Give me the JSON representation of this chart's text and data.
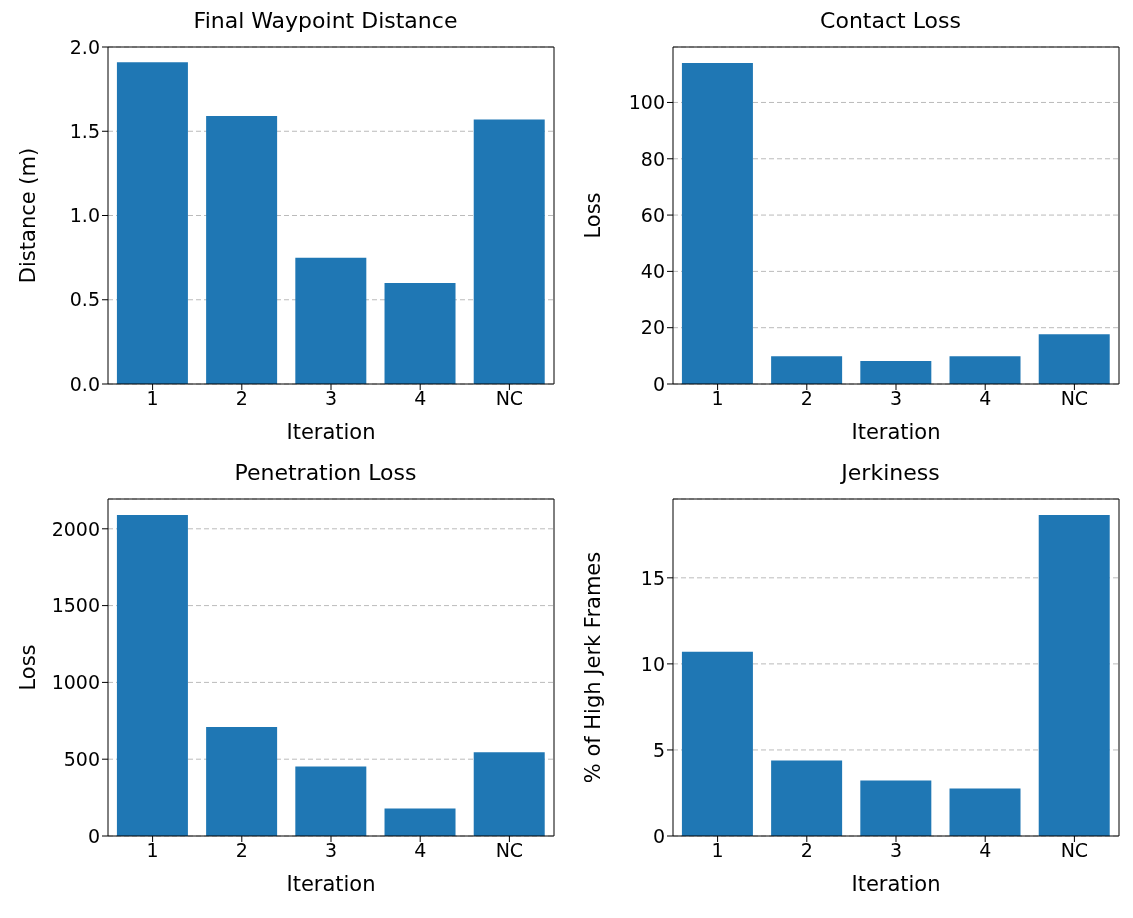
{
  "chart_data": [
    {
      "type": "bar",
      "title": "Final Waypoint Distance",
      "xlabel": "Iteration",
      "ylabel": "Distance (m)",
      "categories": [
        "1",
        "2",
        "3",
        "4",
        "NC"
      ],
      "values": [
        1.91,
        1.59,
        0.75,
        0.6,
        1.57
      ],
      "color": "#1f77b4",
      "ylim": [
        0,
        2.0
      ],
      "yticks": [
        {
          "value": 0,
          "label": "0.0"
        },
        {
          "value": 0.5,
          "label": "0.5"
        },
        {
          "value": 1,
          "label": "1.0"
        },
        {
          "value": 1.5,
          "label": "1.5"
        },
        {
          "value": 2,
          "label": "2.0"
        }
      ],
      "grid": "y"
    },
    {
      "type": "bar",
      "title": "Contact Loss",
      "xlabel": "Iteration",
      "ylabel": "Loss",
      "categories": [
        "1",
        "2",
        "3",
        "4",
        "NC"
      ],
      "values": [
        114,
        9.9,
        8.2,
        9.9,
        17.7
      ],
      "color": "#1f77b4",
      "ylim": [
        0,
        119.7
      ],
      "yticks": [
        0,
        20,
        40,
        60,
        80,
        100
      ],
      "grid": "y"
    },
    {
      "type": "bar",
      "title": "Penetration Loss",
      "xlabel": "Iteration",
      "ylabel": "Loss",
      "categories": [
        "1",
        "2",
        "3",
        "4",
        "NC"
      ],
      "values": [
        2090,
        710,
        452,
        179,
        546
      ],
      "color": "#1f77b4",
      "ylim": [
        0,
        2194
      ],
      "yticks": [
        0,
        500,
        1000,
        1500,
        2000
      ],
      "grid": "y"
    },
    {
      "type": "bar",
      "title": "Jerkiness",
      "xlabel": "Iteration",
      "ylabel": "% of High Jerk Frames",
      "categories": [
        "1",
        "2",
        "3",
        "4",
        "NC"
      ],
      "values": [
        10.7,
        4.39,
        3.23,
        2.76,
        18.65
      ],
      "color": "#1f77b4",
      "ylim": [
        0,
        19.58
      ],
      "yticks": [
        0,
        5,
        10,
        15
      ],
      "grid": "y"
    }
  ]
}
